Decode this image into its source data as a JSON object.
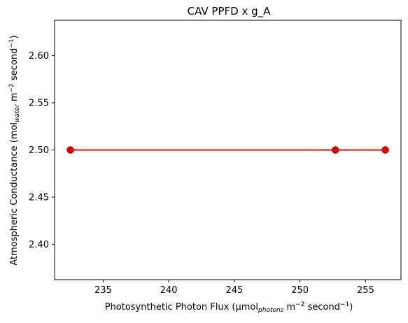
{
  "chart_data": {
    "type": "scatter",
    "title": "CAV PPFD x g_A",
    "xlabel": {
      "prefix": "Photosynthetic Photon Flux (µmol",
      "subscript": "photons",
      "middle": " m",
      "superscript1": "−2",
      "middle2": " second",
      "superscript2": "−1",
      "suffix": ")"
    },
    "ylabel": {
      "prefix": "Atmospheric Conductance (mol",
      "subscript": "water",
      "middle": " m",
      "superscript1": "−2",
      "middle2": " second",
      "superscript2": "−1",
      "suffix": ")"
    },
    "xlim": [
      231.3,
      257.7
    ],
    "ylim": [
      2.3625,
      2.6375
    ],
    "xticks": [
      235,
      240,
      245,
      250,
      255
    ],
    "xtick_labels": [
      "235",
      "240",
      "245",
      "250",
      "255"
    ],
    "yticks": [
      2.4,
      2.45,
      2.5,
      2.55,
      2.6
    ],
    "ytick_labels": [
      "2.40",
      "2.45",
      "2.50",
      "2.55",
      "2.60"
    ],
    "grid": false,
    "series": [
      {
        "kind": "points",
        "color": "#cc0000",
        "x": [
          232.5,
          252.7,
          256.5
        ],
        "y": [
          2.5,
          2.5,
          2.5
        ]
      },
      {
        "kind": "fit-line",
        "color": "#ff0000",
        "x": [
          232.5,
          256.5
        ],
        "y": [
          2.5,
          2.5
        ]
      }
    ]
  }
}
